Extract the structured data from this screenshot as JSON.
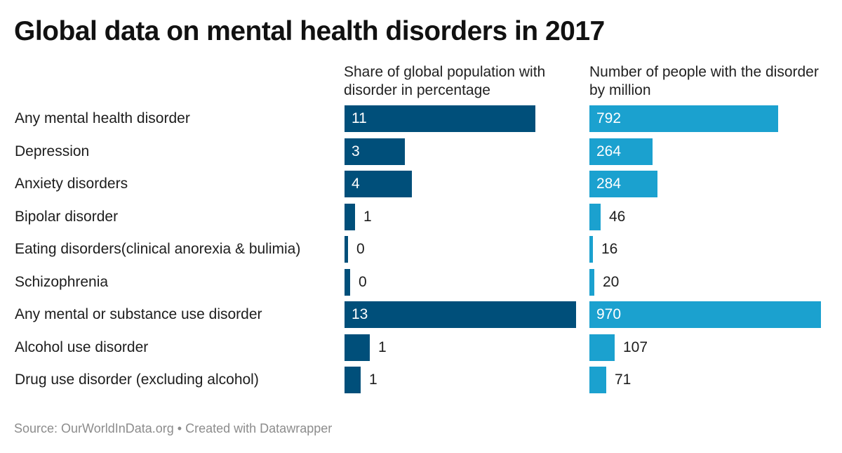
{
  "title": "Global data on mental health disorders in 2017",
  "footer": {
    "source": "Source: OurWorldInData.org",
    "separator": "•",
    "created_with": "Created with Datawrapper"
  },
  "colors": {
    "share_bar": "#004f7a",
    "count_bar": "#1ba1cf"
  },
  "chart_data": {
    "type": "bar",
    "orientation": "horizontal",
    "title": "Global data on mental health disorders in 2017",
    "categories": [
      "Any mental health disorder",
      "Depression",
      "Anxiety disorders",
      "Bipolar disorder",
      "Eating disorders(clinical anorexia & bulimia)",
      "Schizophrenia",
      "Any mental or substance use disorder",
      "Alcohol use disorder",
      "Drug use disorder (excluding alcohol)"
    ],
    "series": [
      {
        "name": "Share of global population with disorder in percentage",
        "values": [
          11,
          3,
          4,
          1,
          0,
          0,
          13,
          1,
          1
        ],
        "bar_values": [
          10.7,
          3.4,
          3.8,
          0.6,
          0.2,
          0.3,
          13.0,
          1.4,
          0.9
        ],
        "xlim": [
          0,
          13.0
        ]
      },
      {
        "name": "Number of people with the disorder by million",
        "values": [
          792,
          264,
          284,
          46,
          16,
          20,
          970,
          107,
          71
        ],
        "xlim": [
          0,
          970
        ]
      }
    ]
  }
}
